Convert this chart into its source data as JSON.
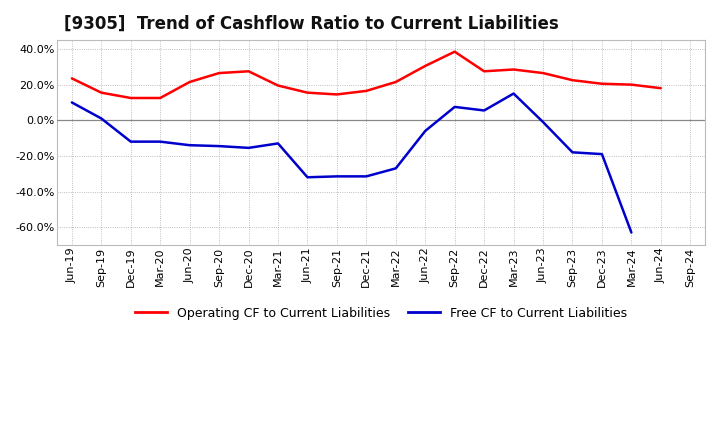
{
  "title": "[9305]  Trend of Cashflow Ratio to Current Liabilities",
  "x_labels": [
    "Jun-19",
    "Sep-19",
    "Dec-19",
    "Mar-20",
    "Jun-20",
    "Sep-20",
    "Dec-20",
    "Mar-21",
    "Jun-21",
    "Sep-21",
    "Dec-21",
    "Mar-22",
    "Jun-22",
    "Sep-22",
    "Dec-22",
    "Mar-23",
    "Jun-23",
    "Sep-23",
    "Dec-23",
    "Mar-24",
    "Jun-24",
    "Sep-24"
  ],
  "operating_cf": [
    0.235,
    0.155,
    0.125,
    0.125,
    0.215,
    0.265,
    0.275,
    0.195,
    0.155,
    0.145,
    0.165,
    0.215,
    0.305,
    0.385,
    0.275,
    0.285,
    0.265,
    0.225,
    0.205,
    0.2,
    0.18,
    null
  ],
  "free_cf": [
    0.1,
    0.01,
    -0.12,
    -0.12,
    -0.14,
    -0.145,
    -0.155,
    -0.13,
    -0.32,
    -0.315,
    -0.315,
    -0.27,
    -0.06,
    0.075,
    0.055,
    0.15,
    -0.01,
    -0.18,
    -0.19,
    -0.63,
    null,
    null
  ],
  "ylim": [
    -0.7,
    0.45
  ],
  "yticks": [
    -0.6,
    -0.4,
    -0.2,
    0.0,
    0.2,
    0.4
  ],
  "operating_color": "#ff0000",
  "free_color": "#0000cc",
  "background_color": "#ffffff",
  "plot_bg_color": "#ffffff",
  "grid_color": "#aaaaaa",
  "zero_line_color": "#888888",
  "legend_labels": [
    "Operating CF to Current Liabilities",
    "Free CF to Current Liabilities"
  ],
  "title_fontsize": 12,
  "axis_fontsize": 8,
  "legend_fontsize": 9,
  "line_width": 1.8
}
